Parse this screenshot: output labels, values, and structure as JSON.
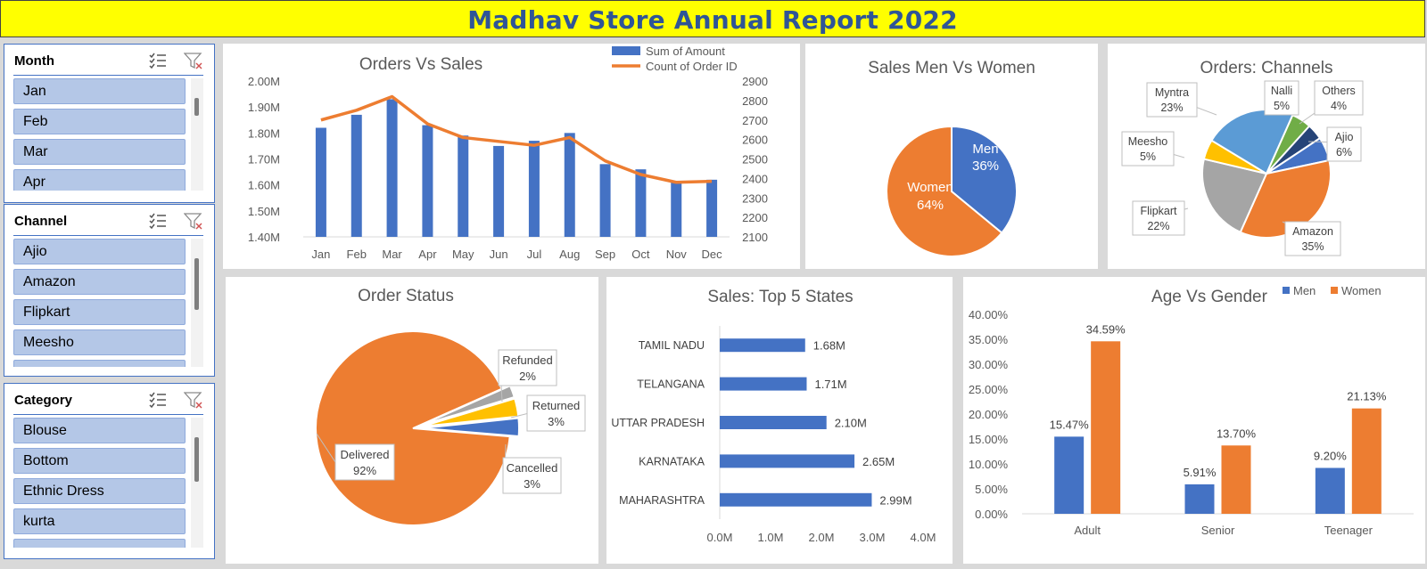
{
  "report_title": "Madhav Store Annual Report 2022",
  "slicers": [
    {
      "title": "Month",
      "items": [
        "Jan",
        "Feb",
        "Mar",
        "Apr"
      ]
    },
    {
      "title": "Channel",
      "items": [
        "Ajio",
        "Amazon",
        "Flipkart",
        "Meesho"
      ]
    },
    {
      "title": "Category",
      "items": [
        "Blouse",
        "Bottom",
        "Ethnic Dress",
        "kurta"
      ]
    }
  ],
  "icons": {
    "multiselect": "multi-select-icon",
    "clear_filter": "clear-filter-icon"
  },
  "colors": {
    "blue": "#4472c4",
    "orange": "#ed7d31",
    "gray": "#a5a5a5",
    "yellow": "#ffc000",
    "lightblue": "#5b9bd5",
    "green": "#70ad47",
    "navy": "#264478",
    "title_bg": "#ffff00",
    "title_text": "#2f5597"
  },
  "chart_data": [
    {
      "id": "orders_vs_sales",
      "type": "bar+line",
      "title": "Orders Vs Sales",
      "categories": [
        "Jan",
        "Feb",
        "Mar",
        "Apr",
        "May",
        "Jun",
        "Jul",
        "Aug",
        "Sep",
        "Oct",
        "Nov",
        "Dec"
      ],
      "series": [
        {
          "name": "Sum of Amount",
          "type": "bar",
          "axis": "left",
          "values": [
            1.82,
            1.87,
            1.93,
            1.83,
            1.79,
            1.75,
            1.77,
            1.8,
            1.68,
            1.66,
            1.61,
            1.62
          ]
        },
        {
          "name": "Count of Order ID",
          "type": "line",
          "axis": "right",
          "values": [
            2700,
            2750,
            2820,
            2680,
            2610,
            2590,
            2570,
            2610,
            2490,
            2420,
            2380,
            2385
          ]
        }
      ],
      "y_left": {
        "min": 1.4,
        "max": 2.0,
        "ticks": [
          "1.40M",
          "1.50M",
          "1.60M",
          "1.70M",
          "1.80M",
          "1.90M",
          "2.00M"
        ]
      },
      "y_right": {
        "min": 2100,
        "max": 2900,
        "ticks": [
          "2100",
          "2200",
          "2300",
          "2400",
          "2500",
          "2600",
          "2700",
          "2800",
          "2900"
        ]
      },
      "legend_position": "top-right"
    },
    {
      "id": "sales_men_women",
      "type": "pie",
      "title": "Sales Men Vs Women",
      "slices": [
        {
          "label": "Men",
          "value": 36,
          "pct_label": "36%"
        },
        {
          "label": "Women",
          "value": 64,
          "pct_label": "64%"
        }
      ]
    },
    {
      "id": "orders_channels",
      "type": "pie",
      "title": "Orders: Channels",
      "slices": [
        {
          "label": "Nalli",
          "value": 5,
          "pct_label": "5%"
        },
        {
          "label": "Others",
          "value": 4,
          "pct_label": "4%"
        },
        {
          "label": "Ajio",
          "value": 6,
          "pct_label": "6%"
        },
        {
          "label": "Amazon",
          "value": 35,
          "pct_label": "35%"
        },
        {
          "label": "Flipkart",
          "value": 22,
          "pct_label": "22%"
        },
        {
          "label": "Meesho",
          "value": 5,
          "pct_label": "5%"
        },
        {
          "label": "Myntra",
          "value": 23,
          "pct_label": "23%"
        }
      ]
    },
    {
      "id": "order_status",
      "type": "pie",
      "title": "Order Status",
      "slices": [
        {
          "label": "Refunded",
          "value": 2,
          "pct_label": "2%"
        },
        {
          "label": "Returned",
          "value": 3,
          "pct_label": "3%"
        },
        {
          "label": "Cancelled",
          "value": 3,
          "pct_label": "3%"
        },
        {
          "label": "Delivered",
          "value": 92,
          "pct_label": "92%"
        }
      ]
    },
    {
      "id": "top5_states",
      "type": "bar",
      "orientation": "horizontal",
      "title": "Sales: Top 5 States",
      "categories": [
        "TAMIL NADU",
        "TELANGANA",
        "UTTAR PRADESH",
        "KARNATAKA",
        "MAHARASHTRA"
      ],
      "values": [
        1.68,
        1.71,
        2.1,
        2.65,
        2.99
      ],
      "value_labels": [
        "1.68M",
        "1.71M",
        "2.10M",
        "2.65M",
        "2.99M"
      ],
      "x_ticks": [
        "0.0M",
        "1.0M",
        "2.0M",
        "3.0M",
        "4.0M"
      ],
      "xlim": [
        0,
        4
      ]
    },
    {
      "id": "age_vs_gender",
      "type": "bar",
      "title": "Age Vs Gender",
      "categories": [
        "Adult",
        "Senior",
        "Teenager"
      ],
      "series": [
        {
          "name": "Men",
          "values": [
            15.47,
            5.91,
            9.2
          ],
          "labels": [
            "15.47%",
            "5.91%",
            "9.20%"
          ]
        },
        {
          "name": "Women",
          "values": [
            34.59,
            13.7,
            21.13
          ],
          "labels": [
            "34.59%",
            "13.70%",
            "21.13%"
          ]
        }
      ],
      "ylim": [
        0,
        40
      ],
      "y_ticks": [
        "0.00%",
        "5.00%",
        "10.00%",
        "15.00%",
        "20.00%",
        "25.00%",
        "30.00%",
        "35.00%",
        "40.00%"
      ],
      "legend_position": "top-right"
    }
  ]
}
